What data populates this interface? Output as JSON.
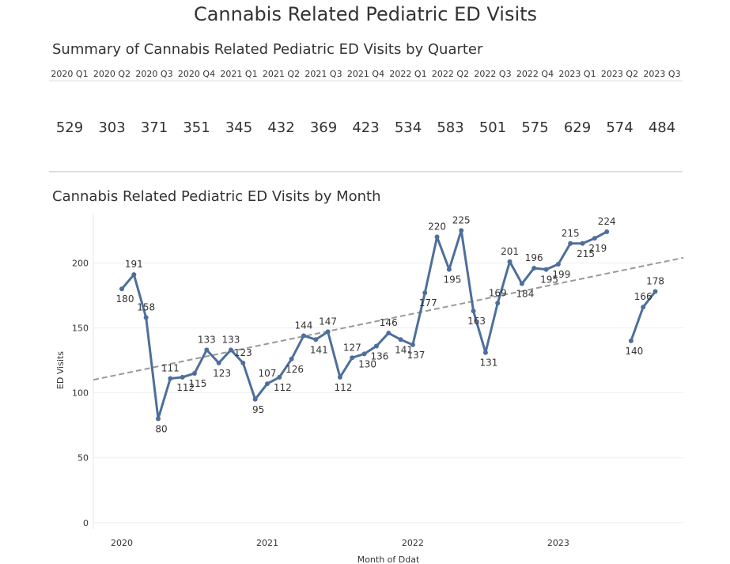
{
  "header": {
    "title": "Cannabis Related Pediatric ED Visits"
  },
  "summary": {
    "title": "Summary of  Cannabis Related Pediatric ED Visits by Quarter",
    "quarters": [
      "2020 Q1",
      "2020 Q2",
      "2020 Q3",
      "2020 Q4",
      "2021 Q1",
      "2021 Q2",
      "2021 Q3",
      "2021 Q4",
      "2022 Q1",
      "2022 Q2",
      "2022 Q3",
      "2022 Q4",
      "2023 Q1",
      "2023 Q2",
      "2023 Q3"
    ],
    "values": [
      529,
      303,
      371,
      351,
      345,
      432,
      369,
      423,
      534,
      583,
      501,
      575,
      629,
      574,
      484
    ]
  },
  "chart_data": {
    "type": "line",
    "title": "Cannabis Related Pediatric ED Visits by Month",
    "x_label": "Month of Ddat",
    "y_label": "ED Visits",
    "categories": [
      "2020",
      null,
      null,
      null,
      null,
      null,
      null,
      null,
      null,
      null,
      null,
      null,
      "2021",
      null,
      null,
      null,
      null,
      null,
      null,
      null,
      null,
      null,
      null,
      null,
      "2022",
      null,
      null,
      null,
      null,
      null,
      null,
      null,
      null,
      null,
      null,
      null,
      "2023",
      null,
      null,
      null,
      null,
      null,
      null,
      null,
      null
    ],
    "series": [
      {
        "name": "ED Visits",
        "color": "#4e6f9b",
        "values": [
          180,
          191,
          158,
          80,
          111,
          112,
          115,
          133,
          123,
          133,
          123,
          95,
          107,
          112,
          126,
          144,
          141,
          147,
          112,
          127,
          130,
          136,
          146,
          141,
          137,
          177,
          220,
          195,
          225,
          163,
          131,
          169,
          201,
          184,
          196,
          195,
          199,
          215,
          215,
          219,
          224,
          null,
          140,
          166,
          178
        ]
      }
    ],
    "trend_line": [
      110,
      204
    ],
    "ylim": [
      -5,
      238
    ],
    "yticks": [
      0,
      50,
      100,
      150,
      200
    ],
    "grid": true
  }
}
